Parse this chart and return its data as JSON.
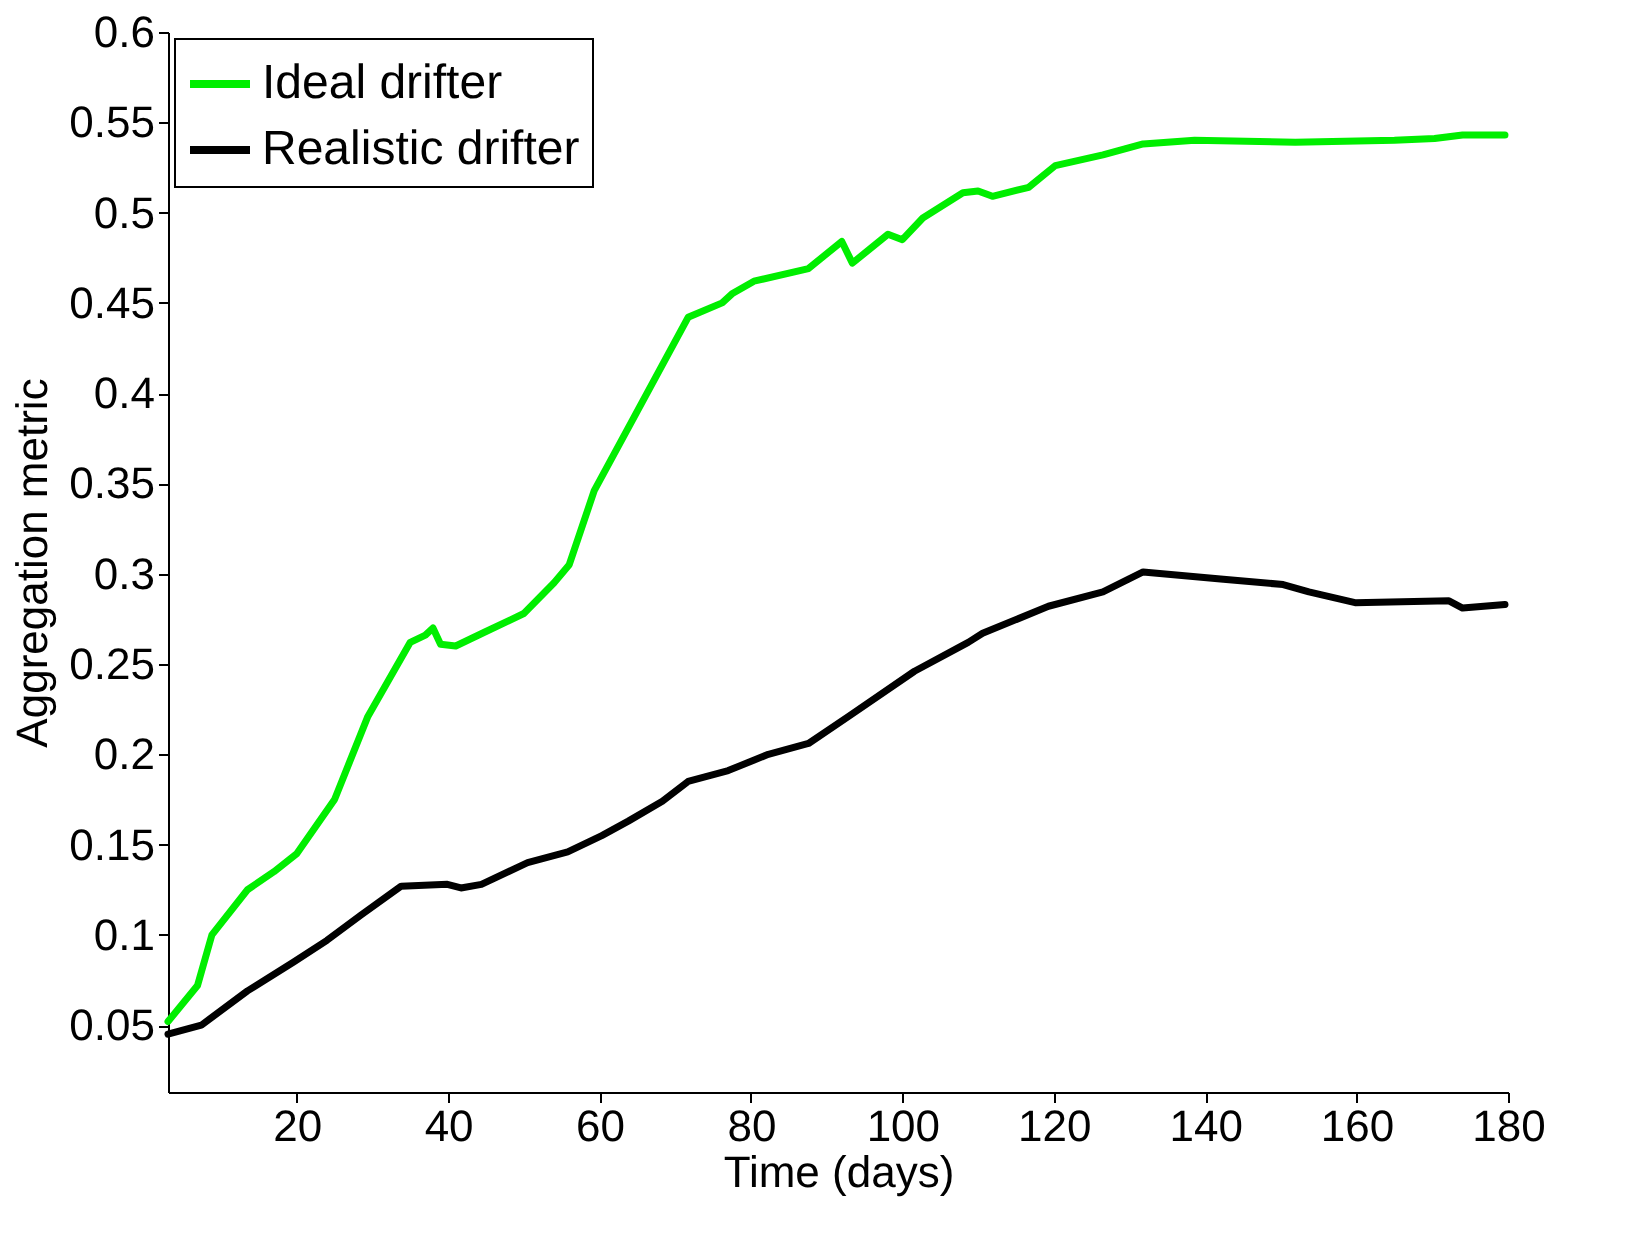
{
  "chart_data": {
    "type": "line",
    "xlabel": "Time (days)",
    "ylabel": "Aggregation metric",
    "xlim": [
      3,
      180
    ],
    "xticks": [
      20,
      40,
      60,
      80,
      100,
      120,
      140,
      160,
      180
    ],
    "ylim": [
      0.013,
      0.6
    ],
    "yticks": [
      0.05,
      0.1,
      0.15,
      0.2,
      0.25,
      0.3,
      0.35,
      0.4,
      0.45,
      0.5,
      0.55,
      0.6
    ],
    "legend": "top left",
    "grid": false,
    "series": [
      {
        "name": "Ideal drifter",
        "color": "#00ee00",
        "x": [
          3,
          6.9,
          8.8,
          13.5,
          17,
          20,
          25,
          29.4,
          32,
          35,
          37,
          38,
          39,
          41,
          45,
          50,
          54,
          56,
          59.3,
          64.6,
          71.7,
          76.2,
          77.5,
          80.4,
          87.6,
          92,
          93.4,
          98.1,
          100,
          102.7,
          108,
          110,
          111.9,
          116.7,
          120.2,
          126.5,
          131.8,
          138.6,
          151.9,
          165,
          170.3,
          174,
          179.6
        ],
        "values": [
          0.052,
          0.072,
          0.1,
          0.125,
          0.135,
          0.145,
          0.175,
          0.221,
          0.24,
          0.262,
          0.266,
          0.27,
          0.261,
          0.26,
          0.268,
          0.278,
          0.295,
          0.305,
          0.346,
          0.387,
          0.442,
          0.45,
          0.455,
          0.462,
          0.469,
          0.484,
          0.472,
          0.488,
          0.485,
          0.497,
          0.511,
          0.512,
          0.509,
          0.514,
          0.526,
          0.532,
          0.538,
          0.54,
          0.539,
          0.54,
          0.541,
          0.543,
          0.543
        ]
      },
      {
        "name": "Realistic drifter",
        "color": "#000000",
        "x": [
          3,
          7.4,
          13.5,
          19.6,
          24,
          28.5,
          33.8,
          39.9,
          41.7,
          44.4,
          50.5,
          55.8,
          60.3,
          63.8,
          68.3,
          71.7,
          77,
          82.3,
          87.6,
          92.9,
          101.6,
          108.7,
          110.6,
          119.3,
          126.5,
          131.8,
          142.4,
          150.3,
          153.7,
          159.8,
          172.2,
          174,
          179.6
        ],
        "values": [
          0.045,
          0.05,
          0.069,
          0.085,
          0.097,
          0.111,
          0.127,
          0.128,
          0.126,
          0.128,
          0.14,
          0.146,
          0.155,
          0.163,
          0.174,
          0.185,
          0.191,
          0.2,
          0.206,
          0.221,
          0.246,
          0.262,
          0.267,
          0.282,
          0.29,
          0.301,
          0.297,
          0.294,
          0.29,
          0.284,
          0.285,
          0.281,
          0.283
        ]
      }
    ]
  }
}
